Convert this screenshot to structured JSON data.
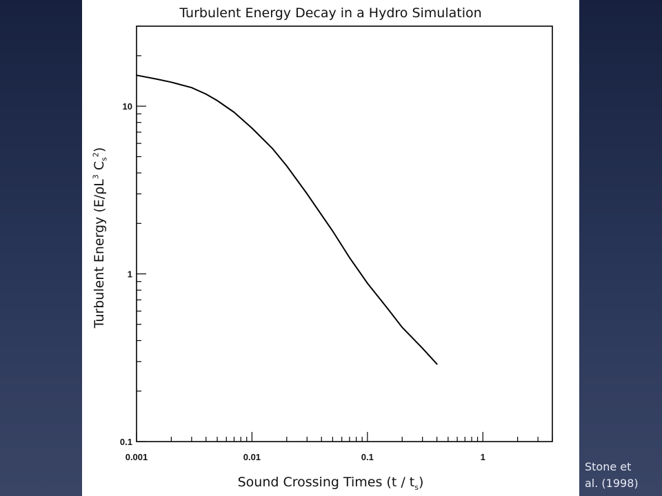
{
  "slide": {
    "credit_line1": "Stone et",
    "credit_line2": "al. (1998)",
    "background_top": "#17213f",
    "background_bottom": "#3a4566"
  },
  "chart_data": {
    "type": "line",
    "title": "Turbulent Energy Decay in a Hydro Simulation",
    "xlabel_main": "Sound Crossing Times (t / t",
    "xlabel_sub": "s",
    "xlabel_end": ")",
    "ylabel_main": "Turbulent Energy (E/ρL",
    "ylabel_sup1": "3",
    "ylabel_mid": " C",
    "ylabel_sub": "s",
    "ylabel_sup2": "2",
    "ylabel_end": ")",
    "x_scale": "log",
    "y_scale": "log",
    "xlim": [
      0.001,
      4
    ],
    "ylim": [
      0.1,
      30
    ],
    "x_ticks": [
      0.001,
      0.01,
      0.1,
      1
    ],
    "x_tick_labels": [
      "0.001",
      "0.01",
      "0.1",
      "1"
    ],
    "y_ticks": [
      0.1,
      1,
      10
    ],
    "y_tick_labels": [
      "0.1",
      "1",
      "10"
    ],
    "grid": false,
    "legend": "none",
    "line_color": "#000000",
    "series": [
      {
        "x": [
          0.001,
          0.0015,
          0.002,
          0.003,
          0.004,
          0.005,
          0.007,
          0.01,
          0.015,
          0.02,
          0.03,
          0.05,
          0.07,
          0.1,
          0.15,
          0.2,
          0.3,
          0.4
        ],
        "y": [
          15.3,
          14.5,
          13.9,
          12.9,
          11.8,
          10.8,
          9.2,
          7.4,
          5.6,
          4.4,
          3.0,
          1.8,
          1.25,
          0.88,
          0.62,
          0.48,
          0.36,
          0.29
        ]
      }
    ]
  }
}
